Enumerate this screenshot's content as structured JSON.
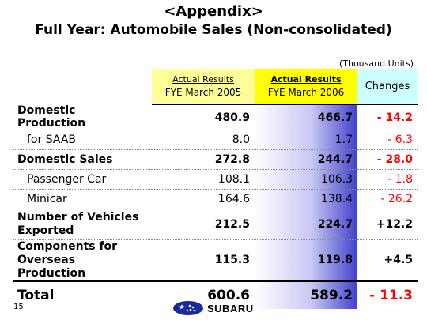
{
  "slide": {
    "title": "<Appendix>",
    "subtitle": "Full Year: Automobile Sales (Non-consolidated)",
    "units_note": "(Thousand Units)",
    "page_number": "15",
    "logo_text": "SUBARU"
  },
  "table": {
    "columns": {
      "fy2005": {
        "line1": "Actual Results",
        "line2": "FYE March 2005"
      },
      "fy2006": {
        "line1": "Actual Results",
        "line2": "FYE March 2006"
      },
      "changes": "Changes"
    },
    "rows": [
      {
        "label": "Domestic Production",
        "fy2005": "480.9",
        "fy2006": "466.7",
        "change": "- 14.2"
      },
      {
        "label": "for SAAB",
        "fy2005": "8.0",
        "fy2006": "1.7",
        "change": "- 6.3"
      },
      {
        "label": "Domestic Sales",
        "fy2005": "272.8",
        "fy2006": "244.7",
        "change": "- 28.0"
      },
      {
        "label": "Passenger Car",
        "fy2005": "108.1",
        "fy2006": "106.3",
        "change": "- 1.8"
      },
      {
        "label": "Minicar",
        "fy2005": "164.6",
        "fy2006": "138.4",
        "change": "- 26.2"
      },
      {
        "label": "Number of Vehicles Exported",
        "fy2005": "212.5",
        "fy2006": "224.7",
        "change": "+12.2"
      },
      {
        "label": "Components for Overseas Production",
        "fy2005": "115.3",
        "fy2006": "119.8",
        "change": "+4.5"
      },
      {
        "label": "Total",
        "fy2005": "600.6",
        "fy2006": "589.2",
        "change": "- 11.3"
      }
    ]
  },
  "colors": {
    "negative_change": "#ff0000",
    "header_fy2005": "#ffff99",
    "header_fy2006": "#ffff00",
    "header_changes": "#ccffff",
    "fy2006_column_gradient_end": "#4040cc",
    "logo_blue": "#1a2a9c"
  }
}
